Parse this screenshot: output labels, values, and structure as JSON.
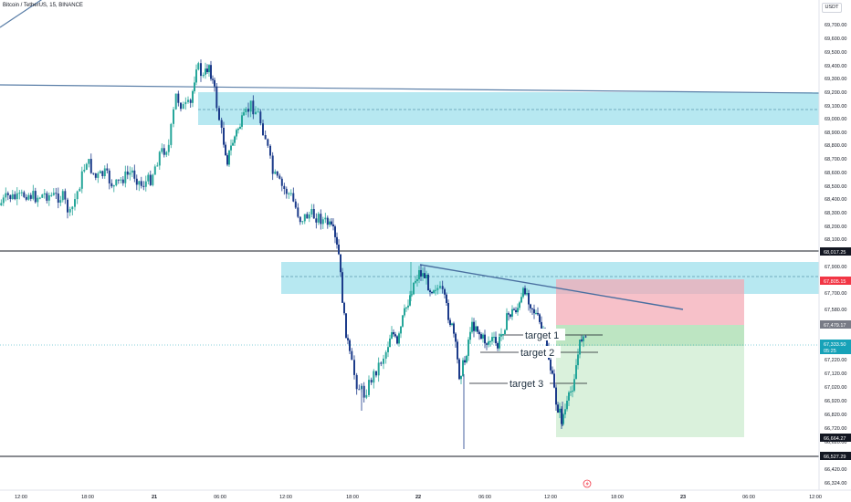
{
  "header": {
    "title": "Bitcoin / TetherUS, 15, BINANCE",
    "currency": "USDT"
  },
  "price_axis": {
    "ticks": [
      "69,700.00",
      "69,600.00",
      "69,500.00",
      "69,400.00",
      "69,300.00",
      "69,200.00",
      "69,100.00",
      "69,000.00",
      "68,900.00",
      "68,800.00",
      "68,700.00",
      "68,600.00",
      "68,500.00",
      "68,400.00",
      "68,300.00",
      "68,200.00",
      "68,100.00",
      "67,900.00",
      "67,700.00",
      "67,580.00",
      "67,220.00",
      "67,120.00",
      "67,020.00",
      "66,920.00",
      "66,820.00",
      "66,720.00",
      "66,620.00",
      "66,420.00",
      "66,324.00"
    ],
    "badges": {
      "level_high": "68,017.25",
      "stop": "67,805.15",
      "entry": "67,479.17",
      "current_price": "67,333.50",
      "countdown": "05:25",
      "take_profit": "66,664.27",
      "level_low": "66,527.29"
    }
  },
  "time_axis": [
    "12:00",
    "18:00",
    "21",
    "06:00",
    "12:00",
    "18:00",
    "22",
    "06:00",
    "12:00",
    "18:00",
    "23",
    "06:00",
    "12:00"
  ],
  "annotations": {
    "target1": "target 1",
    "target2": "target 2",
    "target3": "target 3"
  },
  "colors": {
    "bull": "#26a69a",
    "bear": "#1c3b8a",
    "zone": "#9fe0ec",
    "stop_zone": "#f7c4cb",
    "profit_zone": "#d6efd8",
    "trendline": "#5b7fa8",
    "level_line": "#131722",
    "current": "#17a2b8"
  },
  "icons": {
    "replay": "lightning-circle-icon"
  }
}
